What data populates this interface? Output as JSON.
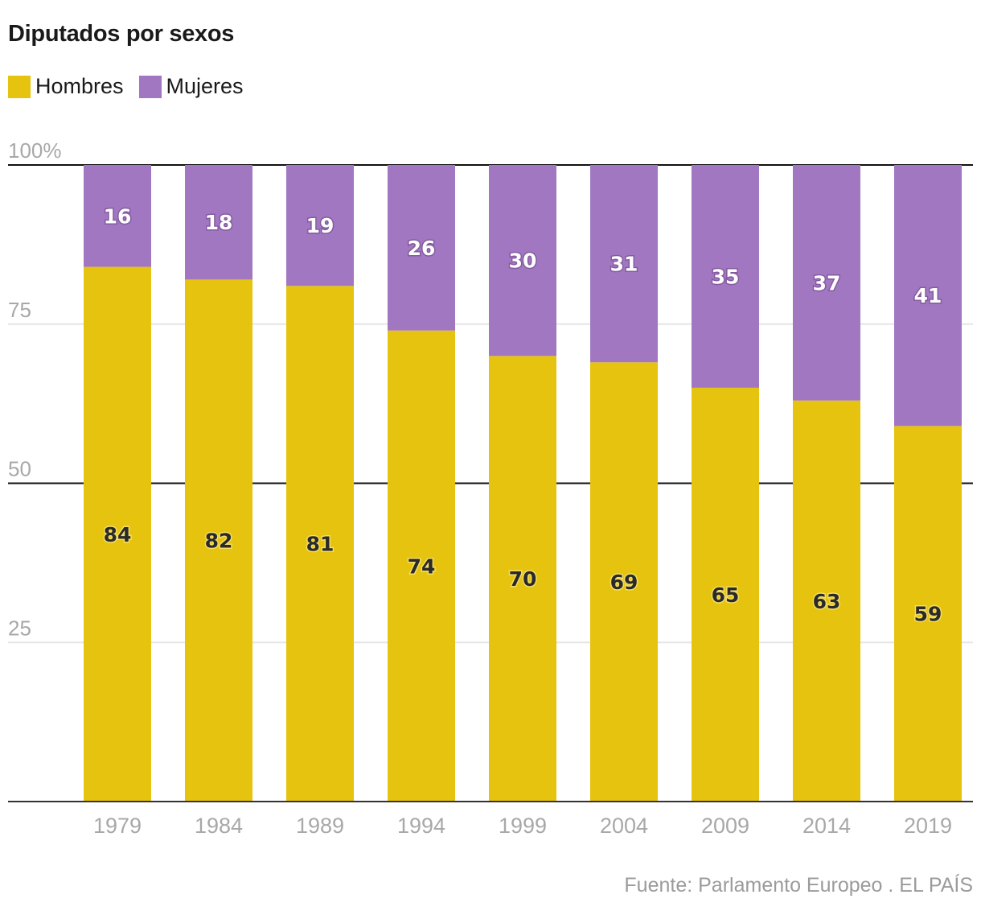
{
  "chart_data": {
    "type": "bar",
    "stacked": true,
    "title": "Diputados por sexos",
    "xlabel": "",
    "ylabel": "",
    "ylim": [
      0,
      100
    ],
    "yticks": [
      {
        "value": 100,
        "label": "100%"
      },
      {
        "value": 75,
        "label": "75"
      },
      {
        "value": 50,
        "label": "50"
      },
      {
        "value": 25,
        "label": "25"
      }
    ],
    "categories": [
      "1979",
      "1984",
      "1989",
      "1994",
      "1999",
      "2004",
      "2009",
      "2014",
      "2019"
    ],
    "series": [
      {
        "name": "Hombres",
        "color": "#e5c30f",
        "values": [
          84,
          82,
          81,
          74,
          70,
          69,
          65,
          63,
          59
        ]
      },
      {
        "name": "Mujeres",
        "color": "#a077c0",
        "values": [
          16,
          18,
          19,
          26,
          30,
          31,
          35,
          37,
          41
        ]
      }
    ],
    "legend": "top-left",
    "grid": true,
    "source": "Fuente: Parlamento Europeo . EL PAÍS"
  }
}
